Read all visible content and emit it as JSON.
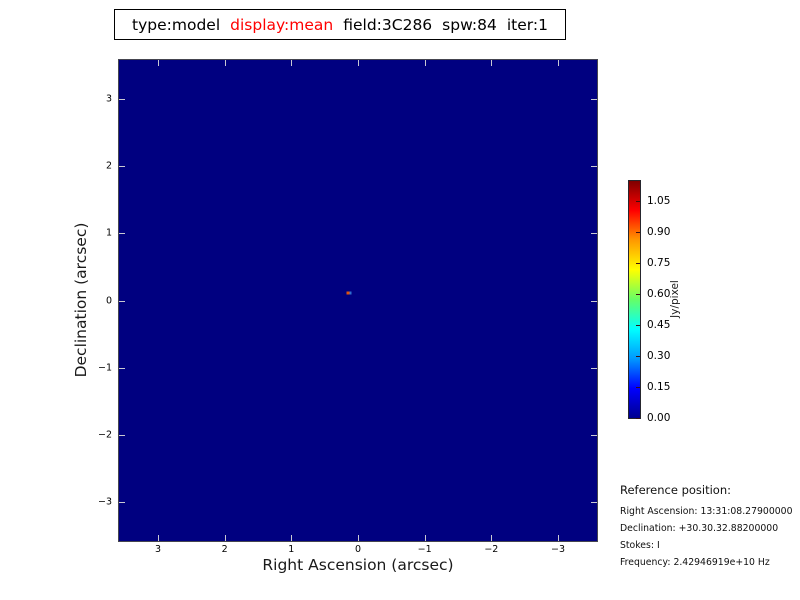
{
  "title": {
    "parts": [
      {
        "text": "type:model",
        "color": "#000000"
      },
      {
        "text": "display:mean",
        "color": "#ff0000"
      },
      {
        "text": "field:3C286",
        "color": "#000000"
      },
      {
        "text": "spw:84",
        "color": "#000000"
      },
      {
        "text": "iter:1",
        "color": "#000000"
      }
    ]
  },
  "plot": {
    "xlabel": "Right Ascension (arcsec)",
    "ylabel": "Declination (arcsec)",
    "x_tick_labels": [
      "3",
      "2",
      "1",
      "0",
      "−1",
      "−2",
      "−3"
    ],
    "y_tick_labels": [
      "3",
      "2",
      "1",
      "0",
      "−1",
      "−2",
      "−3"
    ],
    "background_color": "#000080",
    "source": {
      "ra_arcsec": 0.14,
      "dec_arcsec": 0.11,
      "colors": [
        "#e0520e",
        "#2e6fd0"
      ]
    }
  },
  "colorbar": {
    "tick_labels": [
      "0.00",
      "0.15",
      "0.30",
      "0.45",
      "0.60",
      "0.75",
      "0.90",
      "1.05"
    ],
    "unit_label": "Jy/pixel",
    "gradient_colors": [
      "#7f0000",
      "#ff0000",
      "#ff9900",
      "#ffff00",
      "#66ff66",
      "#00ffff",
      "#0099ff",
      "#0000ff",
      "#00008f"
    ]
  },
  "reference": {
    "heading": "Reference position:",
    "lines": [
      "Right Ascension: 13:31:08.27900000",
      "Declination: +30.30.32.88200000",
      "Stokes: I",
      "Frequency: 2.42946919e+10 Hz"
    ]
  },
  "chart_data": {
    "type": "heatmap",
    "title": "type:model  display:mean  field:3C286  spw:84  iter:1",
    "xlabel": "Right Ascension (arcsec)",
    "ylabel": "Declination (arcsec)",
    "xlim": [
      3.58,
      -3.58
    ],
    "ylim": [
      -3.58,
      3.58
    ],
    "x_ticks": [
      3,
      2,
      1,
      0,
      -1,
      -2,
      -3
    ],
    "y_ticks": [
      3,
      2,
      1,
      0,
      -1,
      -2,
      -3
    ],
    "grid": false,
    "colormap": "jet",
    "colorbar": {
      "label": "Jy/pixel",
      "ticks": [
        0.0,
        0.15,
        0.3,
        0.45,
        0.6,
        0.75,
        0.9,
        1.05
      ],
      "position": "right"
    },
    "background_value": 0.0,
    "features": [
      {
        "description": "unresolved point source (model component) near field center",
        "x_arcsec": 0.14,
        "y_arcsec": 0.11,
        "approx_values_jy_per_pixel": [
          0.8,
          0.25
        ]
      }
    ]
  }
}
